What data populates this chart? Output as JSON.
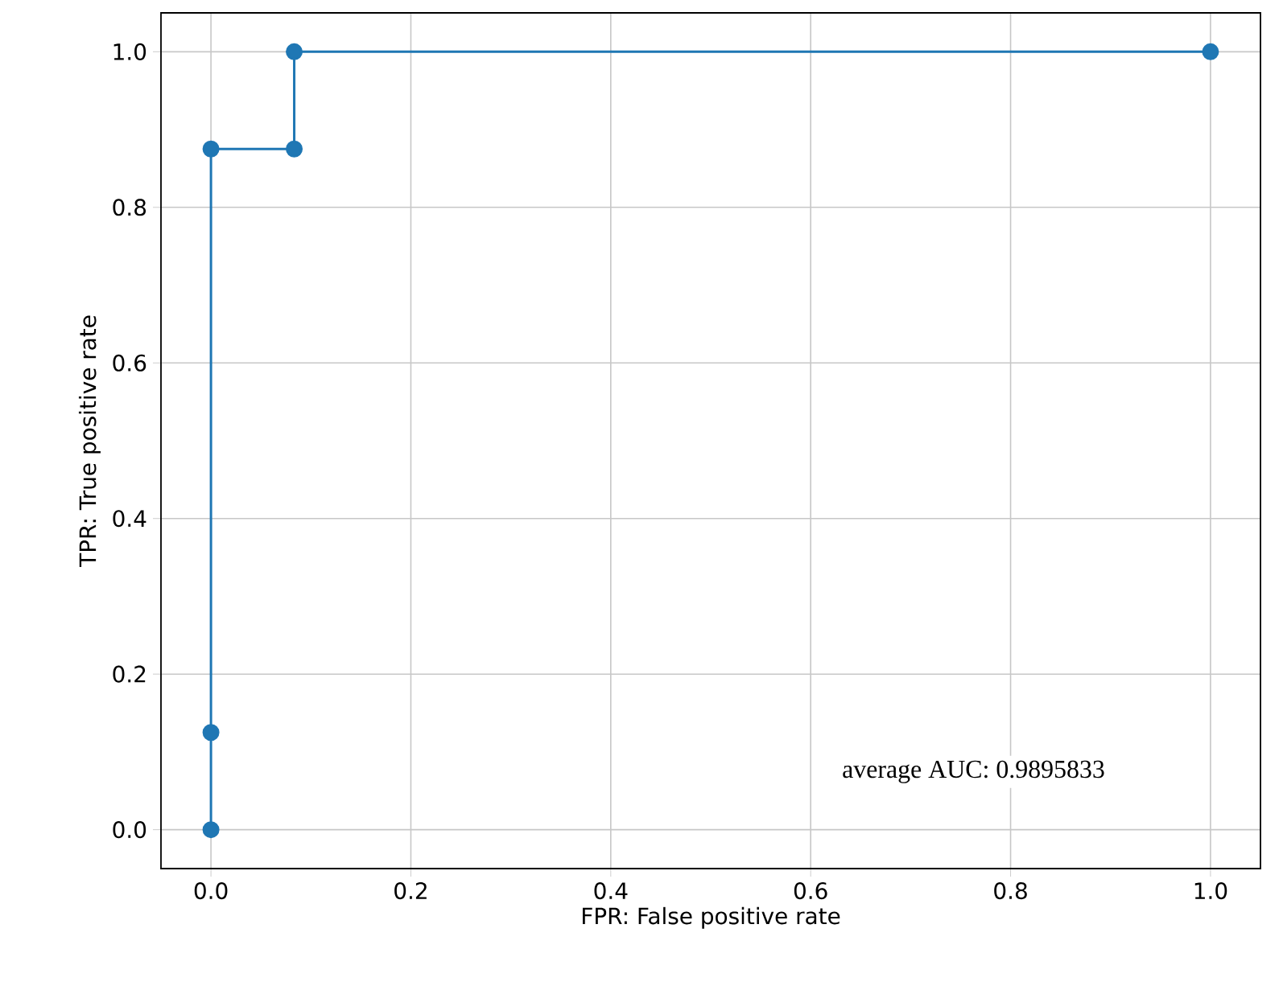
{
  "chart_data": {
    "type": "line",
    "xlabel": "FPR: False positive rate",
    "ylabel": "TPR: True positive rate",
    "x": [
      0,
      0,
      0,
      0.0833,
      0.0833,
      1
    ],
    "values": [
      0,
      0.125,
      0.875,
      0.875,
      1,
      1
    ],
    "color": "#1f77b4",
    "marker": "circle",
    "grid": true,
    "xlim": [
      -0.05,
      1.05
    ],
    "ylim": [
      -0.05,
      1.05
    ],
    "xticks": [
      {
        "value": 0,
        "label": "0.0"
      },
      {
        "value": 0.2,
        "label": "0.2"
      },
      {
        "value": 0.4,
        "label": "0.4"
      },
      {
        "value": 0.6,
        "label": "0.6"
      },
      {
        "value": 0.8,
        "label": "0.8"
      },
      {
        "value": 1,
        "label": "1.0"
      }
    ],
    "yticks": [
      {
        "value": 0,
        "label": "0.0"
      },
      {
        "value": 0.2,
        "label": "0.2"
      },
      {
        "value": 0.4,
        "label": "0.4"
      },
      {
        "value": 0.6,
        "label": "0.6"
      },
      {
        "value": 0.8,
        "label": "0.8"
      },
      {
        "value": 1,
        "label": "1.0"
      }
    ],
    "annotations": [
      "average AUC: 0.9895833"
    ]
  }
}
